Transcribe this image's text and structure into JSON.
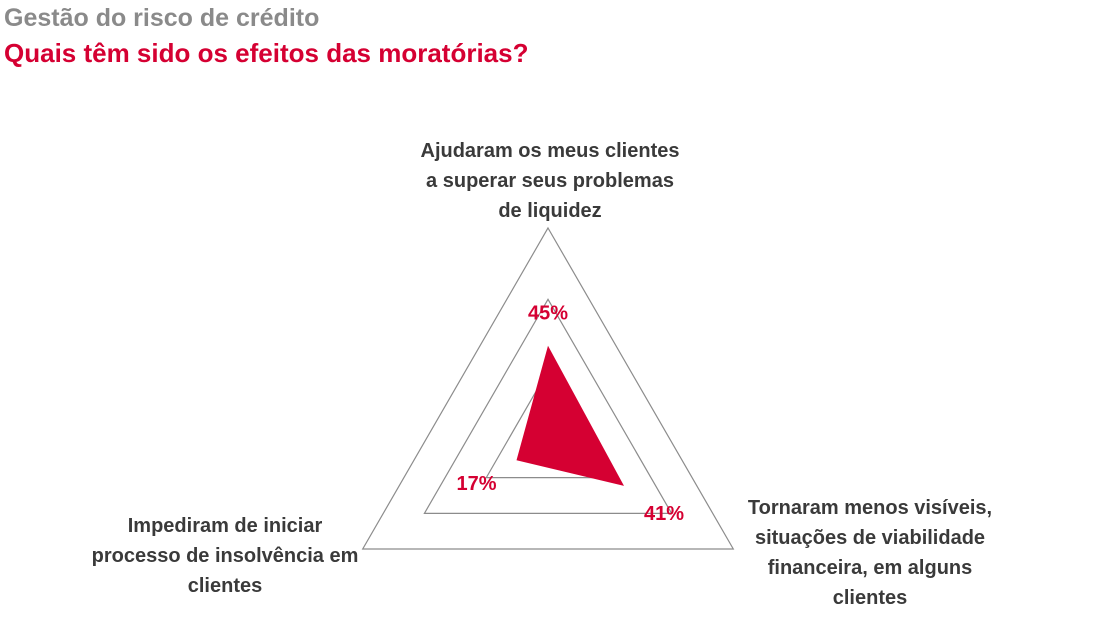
{
  "header": {
    "supertitle": "Gestão do risco de crédito",
    "title": "Quais têm sido os efeitos das moratórias?"
  },
  "colors": {
    "accent": "#d50032",
    "supertitle": "#8a8a8a",
    "grid": "#8c8c8c",
    "label_text": "#3a3a3a"
  },
  "chart_data": {
    "type": "radar",
    "scale_max": 100,
    "grid_levels": [
      33.3,
      66.7,
      100
    ],
    "axes": [
      {
        "key": "top",
        "label_lines": [
          "Ajudaram os meus clientes",
          "a superar seus problemas",
          "de liquidez"
        ],
        "value": 45,
        "value_label": "45%"
      },
      {
        "key": "right",
        "label_lines": [
          "Tornaram menos visíveis,",
          "situações de viabilidade",
          "financeira, em alguns",
          "clientes"
        ],
        "value": 41,
        "value_label": "41%"
      },
      {
        "key": "left",
        "label_lines": [
          "Impediram de iniciar",
          "processo de insolvência em",
          "clientes"
        ],
        "value": 17,
        "value_label": "17%"
      }
    ]
  }
}
